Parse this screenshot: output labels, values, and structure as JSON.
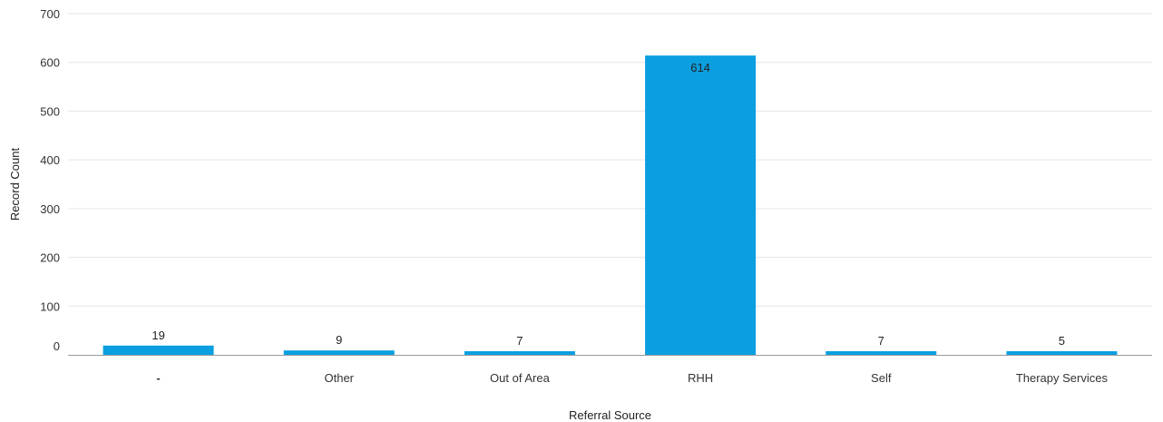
{
  "chart_data": {
    "type": "bar",
    "title": "",
    "xlabel": "Referral Source",
    "ylabel": "Record Count",
    "categories": [
      "-",
      "Other",
      "Out of Area",
      "RHH",
      "Self",
      "Therapy Services"
    ],
    "values": [
      19,
      9,
      7,
      614,
      7,
      5
    ],
    "ylim": [
      0,
      700
    ],
    "yticks": [
      0,
      100,
      200,
      300,
      400,
      500,
      600,
      700
    ],
    "grid": true,
    "legend": "none",
    "data_labels": true,
    "colors": {
      "bar": "#0b9fe0"
    }
  }
}
